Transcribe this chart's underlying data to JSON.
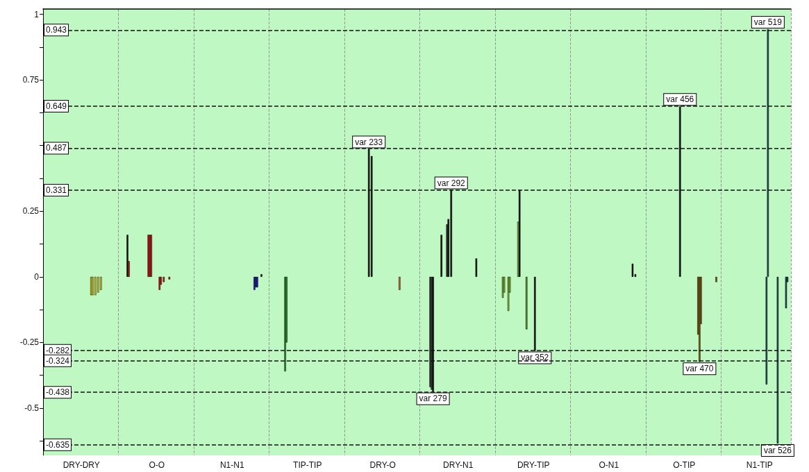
{
  "chart_data": {
    "type": "bar",
    "categories": [
      null,
      null,
      null,
      null,
      null,
      null,
      null,
      null,
      null,
      null,
      null,
      null,
      null,
      null,
      null,
      null,
      null,
      null,
      null,
      null,
      null,
      null,
      null,
      null,
      null,
      null,
      null,
      "DRY-DRY",
      null,
      null,
      null,
      null,
      null,
      null,
      null,
      null,
      null,
      null,
      null,
      null,
      null,
      null,
      null,
      null,
      null,
      null,
      null,
      null,
      null,
      null,
      null,
      null,
      null,
      null,
      null,
      null,
      null,
      null,
      null,
      null,
      null,
      null,
      null,
      null,
      null,
      null,
      null,
      null,
      null,
      null,
      null,
      null,
      null,
      null,
      null,
      null,
      null,
      null,
      null,
      null,
      null,
      "O-O",
      null,
      null,
      null,
      null,
      null,
      null,
      null,
      null,
      null,
      null,
      null,
      null,
      null,
      null,
      null,
      null,
      null,
      null,
      null,
      null,
      null,
      null,
      null,
      null,
      null,
      null,
      null,
      null,
      null,
      null,
      null,
      null,
      null,
      null,
      null,
      null,
      null,
      null,
      null,
      null,
      null,
      null,
      null,
      null,
      null,
      null,
      null,
      null,
      null,
      null,
      null,
      null,
      null,
      "N1-N1",
      null,
      null,
      null,
      null,
      null,
      null,
      null,
      null,
      null,
      null,
      null,
      null,
      null,
      null,
      null,
      null,
      null,
      null,
      null,
      null,
      null,
      null,
      null,
      null,
      null,
      null,
      null,
      null,
      null,
      null,
      null,
      null,
      null,
      null,
      null,
      null,
      null,
      null,
      null,
      null,
      null,
      null,
      null,
      null,
      null,
      null,
      null,
      null,
      null,
      null,
      null,
      null,
      null,
      "TIP-TIP",
      null,
      null,
      null,
      null,
      null,
      null,
      null,
      null,
      null,
      null,
      null,
      null,
      null,
      null,
      null,
      null,
      null,
      null,
      null,
      null,
      null,
      null,
      null,
      null,
      null,
      null,
      null,
      null,
      null,
      null,
      null,
      null,
      null,
      null,
      null,
      null,
      null,
      null,
      null,
      null,
      null,
      null,
      null,
      null,
      null,
      null,
      null,
      null,
      null,
      null,
      null,
      null,
      null,
      "DRY-O",
      null,
      null,
      null,
      null,
      null,
      null,
      null,
      null,
      null,
      null,
      null,
      null,
      null,
      null,
      null,
      null,
      null,
      null,
      null,
      null,
      null,
      null,
      null,
      null,
      null,
      null,
      null,
      null,
      null,
      null,
      null,
      null,
      null,
      null,
      null,
      null,
      null,
      null,
      null,
      null,
      null,
      null,
      null,
      null,
      null,
      null,
      null,
      null,
      null,
      null,
      null,
      null,
      null,
      "DRY-N1",
      null,
      null,
      null,
      null,
      null,
      null,
      null,
      null,
      null,
      null,
      null,
      null,
      null,
      null,
      null,
      null,
      null,
      null,
      null,
      null,
      null,
      null,
      null,
      null,
      null,
      null,
      null,
      null,
      null,
      null,
      null,
      null,
      null,
      null,
      null,
      null,
      null,
      null,
      null,
      null,
      null,
      null,
      null,
      null,
      null,
      null,
      null,
      null,
      null,
      null,
      null,
      null,
      null,
      "DRY-TIP",
      null,
      null,
      null,
      null,
      null,
      null,
      null,
      null,
      null,
      null,
      null,
      null,
      null,
      null,
      null,
      null,
      null,
      null,
      null,
      null,
      null,
      null,
      null,
      null,
      null,
      null,
      null,
      null,
      null,
      null,
      null,
      null,
      null,
      null,
      null,
      null,
      null,
      null,
      null,
      null,
      null,
      null,
      null,
      null,
      null,
      null,
      null,
      null,
      null,
      null,
      null,
      null,
      null,
      "O-N1",
      null,
      null,
      null,
      null,
      null,
      null,
      null,
      null,
      null,
      null,
      null,
      null,
      null,
      null,
      null,
      null,
      null,
      null,
      null,
      null,
      null,
      null,
      null,
      null,
      null,
      null,
      null,
      null,
      null,
      null,
      null,
      null,
      null,
      null,
      null,
      null,
      null,
      null,
      null,
      null,
      null,
      null,
      null,
      null,
      null,
      null,
      null,
      null,
      null,
      null,
      null,
      null,
      null,
      "O-TIP",
      null,
      null,
      null,
      null,
      null,
      null,
      null,
      null,
      null,
      null,
      null,
      null,
      null,
      null,
      null,
      null,
      null,
      null,
      null,
      null,
      null,
      null,
      null,
      null,
      null,
      null,
      null,
      null,
      null,
      null,
      null,
      null,
      null,
      null,
      null,
      null,
      null,
      null,
      null,
      null,
      null,
      null,
      null,
      null,
      null,
      null,
      null,
      null,
      null,
      null,
      null,
      null,
      null,
      "N1-TIP",
      null,
      null,
      null,
      null,
      null,
      null,
      null,
      null,
      null,
      null,
      null,
      null,
      null,
      null,
      null,
      null,
      null,
      null,
      null,
      null,
      null,
      null
    ],
    "values": [
      null,
      null,
      null,
      null,
      null,
      null,
      null,
      null,
      null,
      null,
      null,
      null,
      null,
      null,
      null,
      null,
      null,
      null,
      null,
      null,
      null,
      null,
      null,
      null,
      null,
      null,
      null,
      null,
      null,
      null,
      null,
      null,
      null,
      null,
      -0.07,
      -0.07,
      null,
      -0.07,
      null,
      -0.06,
      null,
      -0.05,
      null,
      null,
      null,
      null,
      null,
      null,
      null,
      null,
      null,
      null,
      null,
      null,
      null,
      null,
      null,
      null,
      null,
      null,
      0.16,
      0.06,
      null,
      null,
      null,
      null,
      null,
      null,
      null,
      null,
      null,
      null,
      null,
      null,
      null,
      0.16,
      0.16,
      0.16,
      null,
      null,
      null,
      null,
      null,
      -0.05,
      -0.03,
      null,
      -0.02,
      null,
      null,
      null,
      -0.01,
      null,
      null,
      null,
      null,
      null,
      null,
      null,
      null,
      null,
      null,
      null,
      null,
      null,
      null,
      null,
      null,
      null,
      null,
      null,
      null,
      null,
      null,
      null,
      null,
      null,
      null,
      null,
      null,
      null,
      null,
      null,
      null,
      null,
      null,
      null,
      null,
      null,
      null,
      null,
      null,
      null,
      null,
      null,
      null,
      null,
      null,
      null,
      null,
      null,
      null,
      null,
      null,
      null,
      null,
      null,
      null,
      null,
      null,
      null,
      null,
      -0.05,
      -0.04,
      -0.04,
      null,
      null,
      0.01,
      null,
      null,
      null,
      null,
      null,
      null,
      null,
      null,
      null,
      null,
      null,
      null,
      null,
      null,
      null,
      null,
      -0.36,
      -0.25,
      null,
      null,
      null,
      null,
      null,
      null,
      null,
      null,
      null,
      null,
      null,
      null,
      null,
      null,
      null,
      null,
      null,
      null,
      null,
      null,
      null,
      null,
      null,
      null,
      null,
      null,
      null,
      null,
      null,
      null,
      null,
      null,
      null,
      null,
      null,
      null,
      null,
      null,
      null,
      null,
      null,
      null,
      null,
      null,
      null,
      null,
      null,
      null,
      null,
      null,
      null,
      null,
      null,
      null,
      null,
      null,
      null,
      null,
      0.487,
      null,
      0.46,
      null,
      null,
      null,
      null,
      null,
      null,
      null,
      null,
      null,
      null,
      null,
      null,
      null,
      null,
      null,
      null,
      null,
      null,
      null,
      -0.05,
      null,
      null,
      null,
      null,
      null,
      null,
      null,
      null,
      null,
      null,
      null,
      null,
      null,
      null,
      null,
      null,
      null,
      null,
      null,
      null,
      null,
      -0.42,
      -0.43,
      -0.438,
      null,
      null,
      null,
      null,
      null,
      0.16,
      null,
      null,
      null,
      0.2,
      0.22,
      null,
      0.331,
      null,
      null,
      null,
      null,
      null,
      null,
      null,
      null,
      null,
      null,
      null,
      null,
      null,
      null,
      null,
      null,
      null,
      0.07,
      null,
      null,
      null,
      null,
      null,
      null,
      null,
      null,
      null,
      null,
      null,
      null,
      null,
      null,
      null,
      null,
      null,
      null,
      -0.08,
      -0.06,
      null,
      null,
      -0.13,
      -0.06,
      null,
      null,
      null,
      null,
      null,
      0.21,
      0.331,
      null,
      null,
      null,
      null,
      -0.2,
      null,
      null,
      null,
      null,
      null,
      -0.282,
      null,
      null,
      null,
      null,
      null,
      null,
      null,
      null,
      null,
      null,
      null,
      null,
      null,
      null,
      null,
      null,
      null,
      null,
      null,
      null,
      null,
      null,
      null,
      null,
      null,
      null,
      null,
      null,
      null,
      null,
      null,
      null,
      null,
      null,
      null,
      null,
      null,
      null,
      null,
      null,
      null,
      null,
      null,
      null,
      null,
      null,
      null,
      null,
      null,
      null,
      null,
      null,
      null,
      null,
      null,
      null,
      null,
      null,
      null,
      null,
      null,
      null,
      null,
      null,
      null,
      null,
      null,
      null,
      null,
      0.05,
      null,
      0.01,
      null,
      null,
      null,
      null,
      null,
      null,
      null,
      null,
      null,
      null,
      null,
      null,
      null,
      null,
      null,
      null,
      null,
      null,
      null,
      null,
      null,
      null,
      null,
      null,
      null,
      null,
      null,
      null,
      null,
      null,
      null,
      0.649,
      null,
      null,
      null,
      null,
      null,
      null,
      null,
      null,
      null,
      null,
      null,
      null,
      -0.22,
      -0.324,
      -0.18,
      null,
      null,
      null,
      null,
      null,
      null,
      null,
      null,
      null,
      null,
      -0.02,
      null,
      null,
      null,
      null,
      null,
      null,
      null,
      null,
      null,
      null,
      null,
      null,
      null,
      null,
      null,
      null,
      null,
      null,
      null,
      null,
      null,
      null,
      null,
      null,
      null,
      null,
      null,
      null,
      null,
      null,
      null,
      null,
      null,
      null,
      null,
      -0.41,
      0.943,
      null,
      null,
      null,
      null,
      null,
      null,
      -0.635,
      null,
      null,
      null,
      null,
      null,
      -0.12,
      -0.02,
      null,
      null
    ],
    "colors": [
      null,
      null,
      null,
      null,
      null,
      null,
      null,
      null,
      null,
      null,
      null,
      null,
      null,
      null,
      null,
      null,
      null,
      null,
      null,
      null,
      null,
      null,
      null,
      null,
      null,
      null,
      null,
      null,
      null,
      null,
      null,
      null,
      null,
      null,
      "#d8c820",
      "#d8c820",
      null,
      "#d8c820",
      null,
      "#d8c820",
      null,
      "#d8c820",
      null,
      null,
      null,
      null,
      null,
      null,
      null,
      null,
      null,
      null,
      null,
      null,
      null,
      null,
      null,
      null,
      null,
      null,
      "#111111",
      "#c0181b",
      null,
      null,
      null,
      null,
      null,
      null,
      null,
      null,
      null,
      null,
      null,
      null,
      null,
      "#c0181b",
      "#c0181b",
      "#c0181b",
      null,
      null,
      null,
      null,
      null,
      "#c0181b",
      "#c0181b",
      null,
      "#c0181b",
      null,
      null,
      null,
      "#c0181b",
      null,
      null,
      null,
      null,
      null,
      null,
      null,
      null,
      null,
      null,
      null,
      null,
      null,
      null,
      null,
      null,
      null,
      null,
      null,
      null,
      null,
      null,
      null,
      null,
      null,
      null,
      null,
      null,
      null,
      null,
      null,
      null,
      null,
      null,
      null,
      null,
      null,
      null,
      null,
      null,
      null,
      null,
      null,
      null,
      null,
      null,
      null,
      null,
      null,
      null,
      null,
      null,
      null,
      null,
      null,
      null,
      null,
      null,
      null,
      null,
      "#1a1aa8",
      "#1a1aa8",
      "#1a1aa8",
      null,
      null,
      "#111111",
      null,
      null,
      null,
      null,
      null,
      null,
      null,
      null,
      null,
      null,
      null,
      null,
      null,
      null,
      null,
      null,
      "#2d8a2d",
      "#2d8a2d",
      null,
      null,
      null,
      null,
      null,
      null,
      null,
      null,
      null,
      null,
      null,
      null,
      null,
      null,
      null,
      null,
      null,
      null,
      null,
      null,
      null,
      null,
      null,
      null,
      null,
      null,
      null,
      null,
      null,
      null,
      null,
      null,
      null,
      null,
      null,
      null,
      null,
      null,
      null,
      null,
      null,
      null,
      null,
      null,
      null,
      null,
      null,
      null,
      null,
      null,
      null,
      null,
      null,
      null,
      null,
      null,
      null,
      null,
      "#111111",
      null,
      "#111111",
      null,
      null,
      null,
      null,
      null,
      null,
      null,
      null,
      null,
      null,
      null,
      null,
      null,
      null,
      null,
      null,
      null,
      null,
      null,
      "#c8602a",
      null,
      null,
      null,
      null,
      null,
      null,
      null,
      null,
      null,
      null,
      null,
      null,
      null,
      null,
      null,
      null,
      null,
      null,
      null,
      null,
      null,
      "#3a3a3a",
      "#3a3a3a",
      "#111111",
      null,
      null,
      null,
      null,
      null,
      "#111111",
      null,
      null,
      null,
      "#3a3a3a",
      "#111111",
      null,
      "#111111",
      null,
      null,
      null,
      null,
      null,
      null,
      null,
      null,
      null,
      null,
      null,
      null,
      null,
      null,
      null,
      null,
      null,
      "#111111",
      null,
      null,
      null,
      null,
      null,
      null,
      null,
      null,
      null,
      null,
      null,
      null,
      null,
      null,
      null,
      null,
      null,
      null,
      "#7cb832",
      "#7cb832",
      null,
      null,
      "#7cb832",
      "#7cb832",
      null,
      null,
      null,
      null,
      null,
      "#7cb832",
      "#111111",
      null,
      null,
      null,
      null,
      "#5a8a2a",
      null,
      null,
      null,
      null,
      null,
      "#111111",
      null,
      null,
      null,
      null,
      null,
      null,
      null,
      null,
      null,
      null,
      null,
      null,
      null,
      null,
      null,
      null,
      null,
      null,
      null,
      null,
      null,
      null,
      null,
      null,
      null,
      null,
      null,
      null,
      null,
      null,
      null,
      null,
      null,
      null,
      null,
      null,
      null,
      null,
      null,
      null,
      null,
      null,
      null,
      null,
      null,
      null,
      null,
      null,
      null,
      null,
      null,
      null,
      null,
      null,
      null,
      null,
      null,
      null,
      null,
      null,
      null,
      null,
      null,
      null,
      null,
      null,
      null,
      null,
      null,
      "#111111",
      null,
      "#111111",
      null,
      null,
      null,
      null,
      null,
      null,
      null,
      null,
      null,
      null,
      null,
      null,
      null,
      null,
      null,
      null,
      null,
      null,
      null,
      null,
      null,
      null,
      null,
      null,
      null,
      null,
      null,
      null,
      null,
      null,
      null,
      "#111111",
      null,
      null,
      null,
      null,
      null,
      null,
      null,
      null,
      null,
      null,
      null,
      null,
      "#7a5a10",
      "#7a5a10",
      "#7a5a10",
      null,
      null,
      null,
      null,
      null,
      null,
      null,
      null,
      null,
      null,
      "#7a5a10",
      null,
      null,
      null,
      null,
      null,
      null,
      null,
      null,
      null,
      null,
      null,
      null,
      null,
      null,
      null,
      null,
      null,
      null,
      null,
      null,
      null,
      null,
      null,
      null,
      null,
      null,
      null,
      null,
      null,
      null,
      null,
      null,
      null,
      null,
      null,
      "#1f4f55",
      "#1f4f55",
      null,
      null,
      null,
      null,
      null,
      null,
      "#1f4f55",
      null,
      null,
      null,
      null,
      null,
      "#1f4f55",
      "#1f4f55",
      null,
      null
    ],
    "value_labels": [
      null,
      null,
      null,
      null,
      null,
      null,
      null,
      null,
      null,
      null,
      null,
      null,
      null,
      null,
      null,
      null,
      null,
      null,
      null,
      null,
      null,
      null,
      null,
      null,
      null,
      null,
      null,
      null,
      null,
      null,
      null,
      null,
      null,
      null,
      null,
      null,
      null,
      null,
      null,
      null,
      null,
      null,
      null,
      null,
      null,
      null,
      null,
      null,
      null,
      null,
      null,
      null,
      null,
      null,
      null,
      null,
      null,
      null,
      null,
      null,
      null,
      null,
      null,
      null,
      null,
      null,
      null,
      null,
      null,
      null,
      null,
      null,
      null,
      null,
      null,
      null,
      null,
      null,
      null,
      null,
      null,
      null,
      null,
      null,
      null,
      null,
      null,
      null,
      null,
      null,
      null,
      null,
      null,
      null,
      null,
      null,
      null,
      null,
      null,
      null,
      null,
      null,
      null,
      null,
      null,
      null,
      null,
      null,
      null,
      null,
      null,
      null,
      null,
      null,
      null,
      null,
      null,
      null,
      null,
      null,
      null,
      null,
      null,
      null,
      null,
      null,
      null,
      null,
      null,
      null,
      null,
      null,
      null,
      null,
      null,
      null,
      null,
      null,
      null,
      null,
      null,
      null,
      null,
      null,
      null,
      null,
      null,
      null,
      null,
      null,
      null,
      null,
      null,
      null,
      null,
      null,
      null,
      null,
      null,
      null,
      null,
      null,
      null,
      null,
      null,
      null,
      null,
      null,
      null,
      null,
      null,
      null,
      null,
      null,
      null,
      null,
      null,
      null,
      null,
      null,
      null,
      null,
      null,
      null,
      null,
      null,
      null,
      null,
      null,
      null,
      null,
      null,
      null,
      null,
      null,
      null,
      null,
      null,
      null,
      null,
      null,
      null,
      null,
      null,
      null,
      null,
      null,
      null,
      null,
      null,
      null,
      null,
      null,
      null,
      null,
      null,
      null,
      null,
      null,
      null,
      null,
      null,
      null,
      null,
      null,
      null,
      null,
      null,
      null,
      null,
      null,
      null,
      null,
      "var 233",
      null,
      null,
      null,
      null,
      null,
      null,
      null,
      null,
      null,
      null,
      null,
      null,
      null,
      null,
      null,
      null,
      null,
      null,
      null,
      null,
      null,
      null,
      null,
      null,
      null,
      null,
      null,
      null,
      null,
      null,
      null,
      null,
      null,
      null,
      null,
      null,
      null,
      null,
      null,
      null,
      null,
      null,
      null,
      null,
      null,
      "var 279",
      null,
      null,
      null,
      null,
      null,
      null,
      null,
      null,
      null,
      null,
      null,
      null,
      "var 292",
      null,
      null,
      null,
      null,
      null,
      null,
      null,
      null,
      null,
      null,
      null,
      null,
      null,
      null,
      null,
      null,
      null,
      null,
      null,
      null,
      null,
      null,
      null,
      null,
      null,
      null,
      null,
      null,
      null,
      null,
      null,
      null,
      null,
      null,
      null,
      null,
      null,
      null,
      null,
      null,
      null,
      null,
      null,
      null,
      null,
      null,
      null,
      null,
      null,
      null,
      null,
      null,
      null,
      null,
      null,
      null,
      null,
      null,
      null,
      "var 352",
      null,
      null,
      null,
      null,
      null,
      null,
      null,
      null,
      null,
      null,
      null,
      null,
      null,
      null,
      null,
      null,
      null,
      null,
      null,
      null,
      null,
      null,
      null,
      null,
      null,
      null,
      null,
      null,
      null,
      null,
      null,
      null,
      null,
      null,
      null,
      null,
      null,
      null,
      null,
      null,
      null,
      null,
      null,
      null,
      null,
      null,
      null,
      null,
      null,
      null,
      null,
      null,
      null,
      null,
      null,
      null,
      null,
      null,
      null,
      null,
      null,
      null,
      null,
      null,
      null,
      null,
      null,
      null,
      null,
      null,
      null,
      null,
      null,
      null,
      null,
      null,
      null,
      null,
      null,
      null,
      null,
      null,
      null,
      null,
      null,
      null,
      null,
      null,
      null,
      null,
      null,
      null,
      null,
      null,
      null,
      null,
      null,
      null,
      null,
      null,
      null,
      null,
      null,
      "var 456",
      null,
      null,
      null,
      null,
      null,
      null,
      null,
      null,
      null,
      null,
      null,
      null,
      null,
      "var 470",
      null,
      null,
      null,
      null,
      null,
      null,
      null,
      null,
      null,
      null,
      null,
      null,
      null,
      null,
      null,
      null,
      null,
      null,
      null,
      null,
      null,
      null,
      null,
      null,
      null,
      null,
      null,
      null,
      null,
      null,
      null,
      null,
      null,
      null,
      null,
      null,
      null,
      null,
      null,
      null,
      null,
      null,
      null,
      null,
      null,
      null,
      null,
      null,
      "var 519",
      null,
      null,
      null,
      null,
      null,
      null,
      "var 526",
      null,
      null,
      null,
      null,
      null,
      null,
      null,
      null,
      null
    ],
    "ylim": [
      -0.68,
      1.02
    ],
    "yticks": [
      {
        "value": -0.625,
        "label": null
      },
      -0.5,
      {
        "value": -0.375,
        "label": null
      },
      -0.25,
      {
        "value": -0.125,
        "label": null
      },
      0,
      {
        "value": 0.125,
        "label": null
      },
      0.25,
      {
        "value": 0.375,
        "label": null
      },
      {
        "value": 0.5,
        "label": null
      },
      {
        "value": 0.625,
        "label": null
      },
      0.75,
      {
        "value": 0.875,
        "label": null
      },
      1
    ],
    "grid": "x",
    "ref_lines": [
      {
        "axis": "y",
        "value": 0.943,
        "label": "0.943",
        "color": "#111111",
        "line_style": "dashed"
      },
      {
        "axis": "y",
        "value": 0.649,
        "label": "0.649",
        "color": "#111111",
        "line_style": "dashed"
      },
      {
        "axis": "y",
        "value": 0.487,
        "label": "0.487",
        "color": "#111111",
        "line_style": "dashed"
      },
      {
        "axis": "y",
        "value": 0.331,
        "label": "0.331",
        "color": "#111111",
        "line_style": "dashed"
      },
      {
        "axis": "y",
        "value": -0.282,
        "label": "-0.282",
        "color": "#111111",
        "line_style": "dashed"
      },
      {
        "axis": "y",
        "value": -0.324,
        "label": "-0.324",
        "color": "#111111",
        "line_style": "dashed"
      },
      {
        "axis": "y",
        "value": -0.438,
        "label": "-0.438",
        "color": "#111111",
        "line_style": "dashed"
      },
      {
        "axis": "y",
        "value": -0.635,
        "label": "-0.635",
        "color": "#111111",
        "line_style": "dashed"
      }
    ]
  }
}
